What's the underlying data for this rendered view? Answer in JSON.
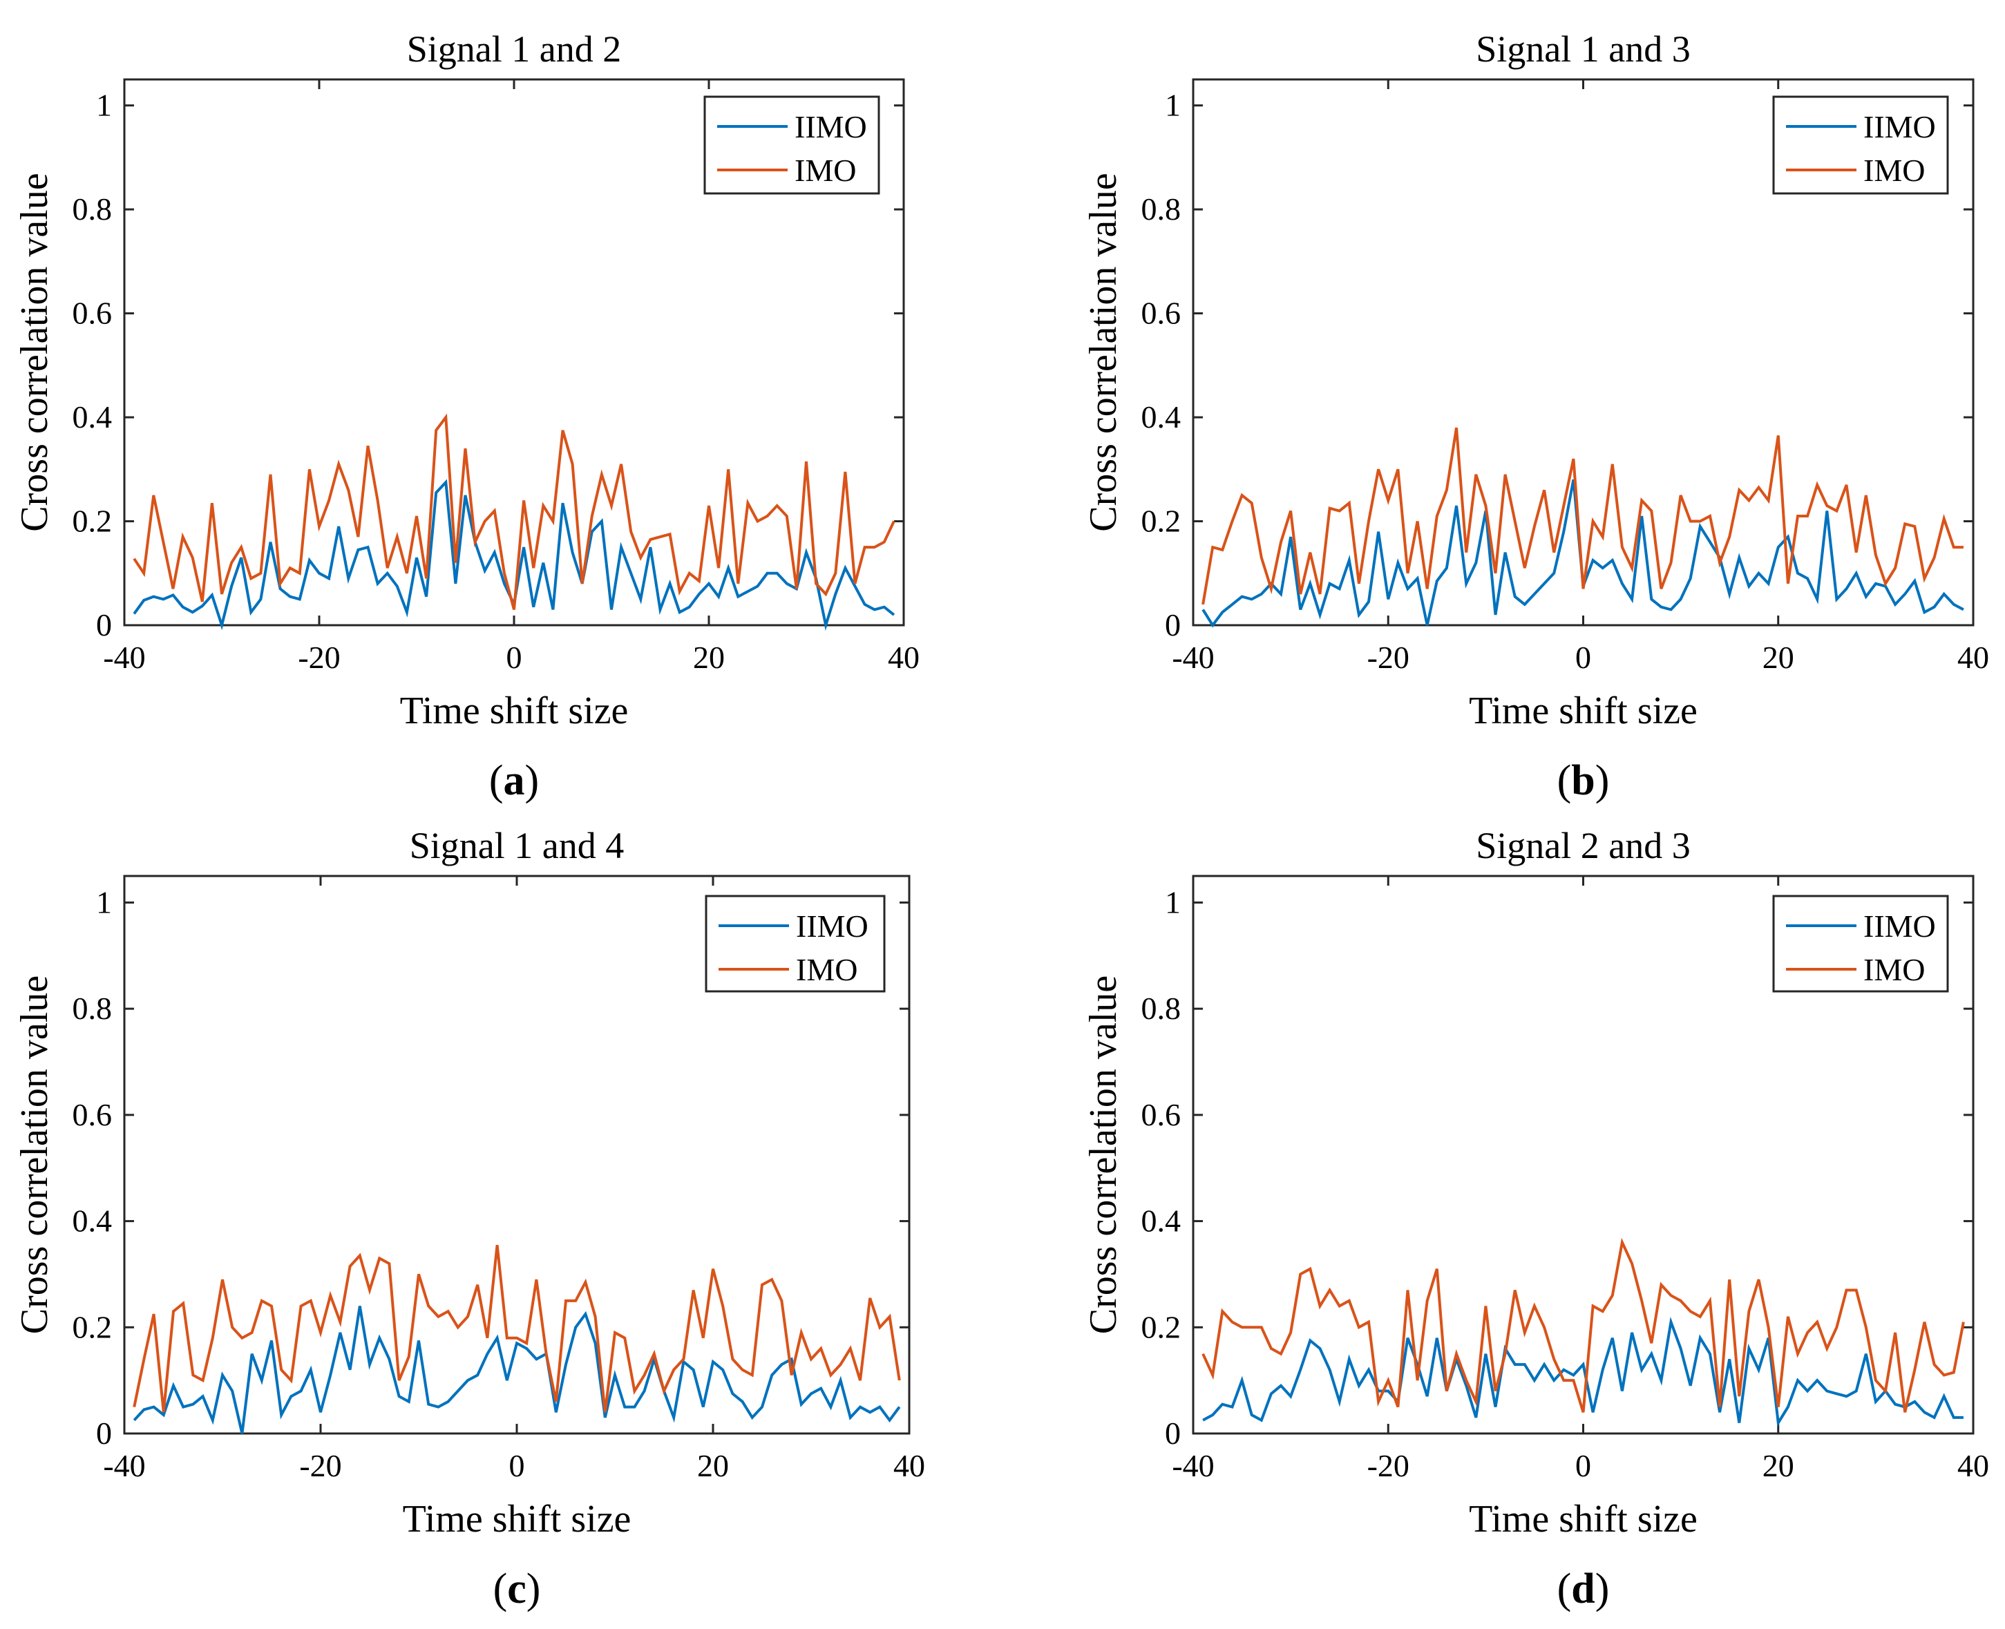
{
  "figure": {
    "panel_labels": [
      "a",
      "b",
      "c",
      "d"
    ]
  },
  "chart_data": [
    {
      "type": "line",
      "title": "Signal 1 and 2",
      "xlabel": "Time shift size",
      "ylabel": "Cross correlation value",
      "xlim": [
        -40,
        40
      ],
      "ylim": [
        0,
        1.05
      ],
      "xticks": [
        -40,
        -20,
        0,
        20,
        40
      ],
      "yticks": [
        0,
        0.2,
        0.4,
        0.6,
        0.8,
        1
      ],
      "legend": "top-right",
      "grid": false,
      "x": [
        -39,
        -38,
        -37,
        -36,
        -35,
        -34,
        -33,
        -32,
        -31,
        -30,
        -29,
        -28,
        -27,
        -26,
        -25,
        -24,
        -23,
        -22,
        -21,
        -20,
        -19,
        -18,
        -17,
        -16,
        -15,
        -14,
        -13,
        -12,
        -11,
        -10,
        -9,
        -8,
        -7,
        -6,
        -5,
        -4,
        -3,
        -2,
        -1,
        0,
        1,
        2,
        3,
        4,
        5,
        6,
        7,
        8,
        9,
        10,
        11,
        12,
        13,
        14,
        15,
        16,
        17,
        18,
        19,
        20,
        21,
        22,
        23,
        24,
        25,
        26,
        27,
        28,
        29,
        30,
        31,
        32,
        33,
        34,
        35,
        36,
        37,
        38,
        39
      ],
      "series": [
        {
          "name": "IIMO",
          "color": "#0072BD",
          "values": [
            0.022,
            0.048,
            0.055,
            0.05,
            0.058,
            0.035,
            0.025,
            0.037,
            0.058,
            0.0,
            0.075,
            0.13,
            0.025,
            0.05,
            0.16,
            0.07,
            0.055,
            0.05,
            0.125,
            0.1,
            0.09,
            0.19,
            0.09,
            0.145,
            0.15,
            0.08,
            0.1,
            0.075,
            0.025,
            0.13,
            0.055,
            0.255,
            0.275,
            0.08,
            0.25,
            0.16,
            0.105,
            0.14,
            0.08,
            0.04,
            0.15,
            0.035,
            0.12,
            0.03,
            0.235,
            0.14,
            0.08,
            0.18,
            0.2,
            0.03,
            0.15,
            0.1,
            0.05,
            0.15,
            0.03,
            0.08,
            0.025,
            0.035,
            0.06,
            0.08,
            0.055,
            0.11,
            0.055,
            0.065,
            0.075,
            0.1,
            0.1,
            0.08,
            0.07,
            0.14,
            0.09,
            0.0,
            0.06,
            0.11,
            0.075,
            0.04,
            0.03,
            0.035,
            0.02
          ]
        },
        {
          "name": "IMO",
          "color": "#D95319",
          "values": [
            0.128,
            0.1,
            0.25,
            0.16,
            0.07,
            0.17,
            0.13,
            0.045,
            0.235,
            0.06,
            0.12,
            0.15,
            0.09,
            0.1,
            0.29,
            0.08,
            0.11,
            0.1,
            0.3,
            0.19,
            0.24,
            0.31,
            0.26,
            0.17,
            0.345,
            0.24,
            0.11,
            0.17,
            0.1,
            0.21,
            0.09,
            0.375,
            0.4,
            0.12,
            0.34,
            0.16,
            0.2,
            0.22,
            0.1,
            0.03,
            0.24,
            0.11,
            0.23,
            0.2,
            0.375,
            0.31,
            0.08,
            0.21,
            0.29,
            0.23,
            0.31,
            0.18,
            0.13,
            0.165,
            0.17,
            0.175,
            0.065,
            0.1,
            0.085,
            0.23,
            0.11,
            0.3,
            0.08,
            0.235,
            0.2,
            0.21,
            0.23,
            0.21,
            0.07,
            0.315,
            0.08,
            0.06,
            0.1,
            0.295,
            0.08,
            0.15,
            0.15,
            0.16,
            0.2
          ]
        }
      ]
    },
    {
      "type": "line",
      "title": "Signal 1 and 3",
      "xlabel": "Time shift size",
      "ylabel": "Cross correlation value",
      "xlim": [
        -40,
        40
      ],
      "ylim": [
        0,
        1.05
      ],
      "xticks": [
        -40,
        -20,
        0,
        20,
        40
      ],
      "yticks": [
        0,
        0.2,
        0.4,
        0.6,
        0.8,
        1
      ],
      "legend": "top-right",
      "grid": false,
      "x": [
        -39,
        -38,
        -37,
        -36,
        -35,
        -34,
        -33,
        -32,
        -31,
        -30,
        -29,
        -28,
        -27,
        -26,
        -25,
        -24,
        -23,
        -22,
        -21,
        -20,
        -19,
        -18,
        -17,
        -16,
        -15,
        -14,
        -13,
        -12,
        -11,
        -10,
        -9,
        -8,
        -7,
        -6,
        -5,
        -4,
        -3,
        -2,
        -1,
        0,
        1,
        2,
        3,
        4,
        5,
        6,
        7,
        8,
        9,
        10,
        11,
        12,
        13,
        14,
        15,
        16,
        17,
        18,
        19,
        20,
        21,
        22,
        23,
        24,
        25,
        26,
        27,
        28,
        29,
        30,
        31,
        32,
        33,
        34,
        35,
        36,
        37,
        38,
        39
      ],
      "series": [
        {
          "name": "IIMO",
          "color": "#0072BD",
          "values": [
            0.03,
            0.0,
            0.025,
            0.04,
            0.055,
            0.05,
            0.06,
            0.08,
            0.06,
            0.17,
            0.03,
            0.08,
            0.02,
            0.08,
            0.07,
            0.125,
            0.02,
            0.045,
            0.18,
            0.05,
            0.12,
            0.07,
            0.09,
            0.0,
            0.085,
            0.11,
            0.23,
            0.08,
            0.12,
            0.22,
            0.02,
            0.14,
            0.055,
            0.04,
            0.06,
            0.08,
            0.1,
            0.18,
            0.28,
            0.075,
            0.125,
            0.11,
            0.125,
            0.08,
            0.05,
            0.21,
            0.05,
            0.035,
            0.03,
            0.05,
            0.09,
            0.19,
            0.16,
            0.13,
            0.06,
            0.13,
            0.075,
            0.1,
            0.08,
            0.15,
            0.17,
            0.1,
            0.09,
            0.05,
            0.22,
            0.05,
            0.07,
            0.1,
            0.055,
            0.08,
            0.075,
            0.04,
            0.06,
            0.085,
            0.025,
            0.035,
            0.06,
            0.04,
            0.03
          ]
        },
        {
          "name": "IMO",
          "color": "#D95319",
          "values": [
            0.04,
            0.15,
            0.145,
            0.2,
            0.25,
            0.235,
            0.13,
            0.07,
            0.16,
            0.22,
            0.06,
            0.14,
            0.06,
            0.225,
            0.22,
            0.235,
            0.08,
            0.2,
            0.3,
            0.24,
            0.3,
            0.1,
            0.2,
            0.07,
            0.21,
            0.26,
            0.38,
            0.14,
            0.29,
            0.23,
            0.1,
            0.29,
            0.2,
            0.11,
            0.19,
            0.26,
            0.14,
            0.23,
            0.32,
            0.07,
            0.2,
            0.17,
            0.31,
            0.15,
            0.11,
            0.24,
            0.22,
            0.07,
            0.12,
            0.25,
            0.2,
            0.2,
            0.21,
            0.12,
            0.17,
            0.26,
            0.24,
            0.265,
            0.24,
            0.365,
            0.08,
            0.21,
            0.21,
            0.27,
            0.23,
            0.22,
            0.27,
            0.14,
            0.25,
            0.135,
            0.08,
            0.11,
            0.195,
            0.19,
            0.09,
            0.13,
            0.205,
            0.15,
            0.15
          ]
        }
      ]
    },
    {
      "type": "line",
      "title": "Signal 1 and 4",
      "xlabel": "Time shift size",
      "ylabel": "Cross correlation value",
      "xlim": [
        -40,
        40
      ],
      "ylim": [
        0,
        1.05
      ],
      "xticks": [
        -40,
        -20,
        0,
        20,
        40
      ],
      "yticks": [
        0,
        0.2,
        0.4,
        0.6,
        0.8,
        1
      ],
      "legend": "top-right",
      "grid": false,
      "x": [
        -39,
        -38,
        -37,
        -36,
        -35,
        -34,
        -33,
        -32,
        -31,
        -30,
        -29,
        -28,
        -27,
        -26,
        -25,
        -24,
        -23,
        -22,
        -21,
        -20,
        -19,
        -18,
        -17,
        -16,
        -15,
        -14,
        -13,
        -12,
        -11,
        -10,
        -9,
        -8,
        -7,
        -6,
        -5,
        -4,
        -3,
        -2,
        -1,
        0,
        1,
        2,
        3,
        4,
        5,
        6,
        7,
        8,
        9,
        10,
        11,
        12,
        13,
        14,
        15,
        16,
        17,
        18,
        19,
        20,
        21,
        22,
        23,
        24,
        25,
        26,
        27,
        28,
        29,
        30,
        31,
        32,
        33,
        34,
        35,
        36,
        37,
        38,
        39
      ],
      "series": [
        {
          "name": "IIMO",
          "color": "#0072BD",
          "values": [
            0.025,
            0.045,
            0.05,
            0.035,
            0.09,
            0.05,
            0.055,
            0.07,
            0.025,
            0.11,
            0.08,
            0.0,
            0.15,
            0.1,
            0.175,
            0.035,
            0.07,
            0.08,
            0.12,
            0.04,
            0.11,
            0.19,
            0.12,
            0.24,
            0.13,
            0.18,
            0.14,
            0.07,
            0.06,
            0.175,
            0.055,
            0.05,
            0.06,
            0.08,
            0.1,
            0.11,
            0.15,
            0.18,
            0.1,
            0.17,
            0.16,
            0.14,
            0.15,
            0.04,
            0.13,
            0.2,
            0.225,
            0.17,
            0.03,
            0.11,
            0.05,
            0.05,
            0.08,
            0.14,
            0.08,
            0.03,
            0.135,
            0.12,
            0.05,
            0.135,
            0.12,
            0.075,
            0.06,
            0.03,
            0.05,
            0.11,
            0.13,
            0.14,
            0.055,
            0.075,
            0.085,
            0.05,
            0.1,
            0.03,
            0.05,
            0.04,
            0.05,
            0.025,
            0.05
          ]
        },
        {
          "name": "IMO",
          "color": "#D95319",
          "values": [
            0.05,
            0.14,
            0.225,
            0.04,
            0.23,
            0.245,
            0.11,
            0.1,
            0.18,
            0.29,
            0.2,
            0.18,
            0.19,
            0.25,
            0.24,
            0.12,
            0.1,
            0.24,
            0.25,
            0.19,
            0.26,
            0.21,
            0.315,
            0.335,
            0.27,
            0.33,
            0.32,
            0.1,
            0.145,
            0.3,
            0.24,
            0.22,
            0.23,
            0.2,
            0.22,
            0.28,
            0.18,
            0.355,
            0.18,
            0.18,
            0.17,
            0.29,
            0.15,
            0.06,
            0.25,
            0.25,
            0.285,
            0.22,
            0.04,
            0.19,
            0.18,
            0.08,
            0.11,
            0.15,
            0.08,
            0.12,
            0.14,
            0.27,
            0.18,
            0.31,
            0.24,
            0.14,
            0.12,
            0.11,
            0.28,
            0.29,
            0.25,
            0.11,
            0.19,
            0.14,
            0.16,
            0.11,
            0.13,
            0.16,
            0.1,
            0.255,
            0.2,
            0.22,
            0.1
          ]
        }
      ]
    },
    {
      "type": "line",
      "title": "Signal 2 and 3",
      "xlabel": "Time shift size",
      "ylabel": "Cross correlation value",
      "xlim": [
        -40,
        40
      ],
      "ylim": [
        0,
        1.05
      ],
      "xticks": [
        -40,
        -20,
        0,
        20,
        40
      ],
      "yticks": [
        0,
        0.2,
        0.4,
        0.6,
        0.8,
        1
      ],
      "legend": "top-right",
      "grid": false,
      "x": [
        -39,
        -38,
        -37,
        -36,
        -35,
        -34,
        -33,
        -32,
        -31,
        -30,
        -29,
        -28,
        -27,
        -26,
        -25,
        -24,
        -23,
        -22,
        -21,
        -20,
        -19,
        -18,
        -17,
        -16,
        -15,
        -14,
        -13,
        -12,
        -11,
        -10,
        -9,
        -8,
        -7,
        -6,
        -5,
        -4,
        -3,
        -2,
        -1,
        0,
        1,
        2,
        3,
        4,
        5,
        6,
        7,
        8,
        9,
        10,
        11,
        12,
        13,
        14,
        15,
        16,
        17,
        18,
        19,
        20,
        21,
        22,
        23,
        24,
        25,
        26,
        27,
        28,
        29,
        30,
        31,
        32,
        33,
        34,
        35,
        36,
        37,
        38,
        39
      ],
      "series": [
        {
          "name": "IIMO",
          "color": "#0072BD",
          "values": [
            0.025,
            0.035,
            0.055,
            0.05,
            0.1,
            0.035,
            0.025,
            0.075,
            0.09,
            0.07,
            0.12,
            0.175,
            0.16,
            0.12,
            0.06,
            0.14,
            0.09,
            0.12,
            0.08,
            0.08,
            0.06,
            0.18,
            0.13,
            0.07,
            0.18,
            0.08,
            0.14,
            0.09,
            0.03,
            0.15,
            0.05,
            0.16,
            0.13,
            0.13,
            0.1,
            0.13,
            0.1,
            0.12,
            0.11,
            0.13,
            0.04,
            0.12,
            0.18,
            0.08,
            0.19,
            0.12,
            0.15,
            0.1,
            0.21,
            0.16,
            0.09,
            0.18,
            0.15,
            0.04,
            0.14,
            0.02,
            0.16,
            0.12,
            0.18,
            0.02,
            0.05,
            0.1,
            0.08,
            0.1,
            0.08,
            0.075,
            0.07,
            0.08,
            0.15,
            0.06,
            0.08,
            0.055,
            0.05,
            0.06,
            0.04,
            0.03,
            0.07,
            0.03,
            0.03
          ]
        },
        {
          "name": "IMO",
          "color": "#D95319",
          "values": [
            0.15,
            0.11,
            0.23,
            0.21,
            0.2,
            0.2,
            0.2,
            0.16,
            0.15,
            0.19,
            0.3,
            0.31,
            0.24,
            0.27,
            0.24,
            0.25,
            0.2,
            0.21,
            0.06,
            0.1,
            0.05,
            0.27,
            0.1,
            0.25,
            0.31,
            0.08,
            0.15,
            0.1,
            0.06,
            0.24,
            0.08,
            0.15,
            0.27,
            0.19,
            0.24,
            0.2,
            0.14,
            0.1,
            0.1,
            0.04,
            0.24,
            0.23,
            0.26,
            0.36,
            0.32,
            0.25,
            0.17,
            0.28,
            0.26,
            0.25,
            0.23,
            0.22,
            0.25,
            0.05,
            0.29,
            0.07,
            0.23,
            0.29,
            0.2,
            0.05,
            0.22,
            0.15,
            0.19,
            0.21,
            0.16,
            0.2,
            0.27,
            0.27,
            0.2,
            0.1,
            0.08,
            0.19,
            0.04,
            0.12,
            0.21,
            0.13,
            0.11,
            0.115,
            0.21
          ]
        }
      ]
    }
  ]
}
